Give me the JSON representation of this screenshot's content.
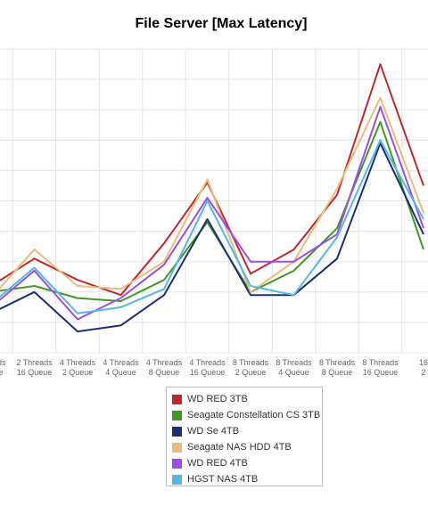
{
  "chart_data": {
    "type": "line",
    "title": "File Server [Max Latency]",
    "xlabel": "",
    "ylabel": "",
    "categories": [
      "Threads\nQueue",
      "2 Threads\n16 Queue",
      "4 Threads\n2 Queue",
      "4 Threads\n4 Queue",
      "4 Threads\n8 Queue",
      "4 Threads\n16 Queue",
      "8 Threads\n2 Queue",
      "8 Threads\n4 Queue",
      "8 Threads\n8 Queue",
      "8 Threads\n16 Queue",
      "16\n2"
    ],
    "ylim": [
      0,
      10
    ],
    "grid": true,
    "legend_position": "bottom",
    "series": [
      {
        "name": "WD RED 3TB",
        "color": "#c0282d",
        "values": [
          2.2,
          3.1,
          2.4,
          1.9,
          3.6,
          5.6,
          2.6,
          3.4,
          5.2,
          9.5,
          5.5
        ]
      },
      {
        "name": "Seagate Constellation CS 3TB",
        "color": "#3f9a25",
        "values": [
          2.0,
          2.2,
          1.8,
          1.7,
          2.4,
          4.3,
          2.0,
          2.7,
          4.1,
          7.6,
          3.4
        ]
      },
      {
        "name": "WD Se 4TB",
        "color": "#1c2e7a",
        "values": [
          1.3,
          2.0,
          0.7,
          0.9,
          1.9,
          4.4,
          1.9,
          1.9,
          3.1,
          6.9,
          3.9
        ]
      },
      {
        "name": "Seagate NAS HDD 4TB",
        "color": "#e8bd7a",
        "values": [
          1.8,
          3.4,
          2.2,
          2.1,
          3.0,
          5.7,
          2.0,
          3.0,
          5.4,
          8.4,
          4.6
        ]
      },
      {
        "name": "WD RED 4TB",
        "color": "#9b4dea",
        "values": [
          1.5,
          2.7,
          1.1,
          1.8,
          2.9,
          5.1,
          3.0,
          3.0,
          3.9,
          8.1,
          4.1
        ]
      },
      {
        "name": "HGST NAS 4TB",
        "color": "#55b7e6",
        "values": [
          1.6,
          2.8,
          1.3,
          1.5,
          2.1,
          5.0,
          2.2,
          1.9,
          3.8,
          7.0,
          4.4
        ]
      }
    ]
  }
}
